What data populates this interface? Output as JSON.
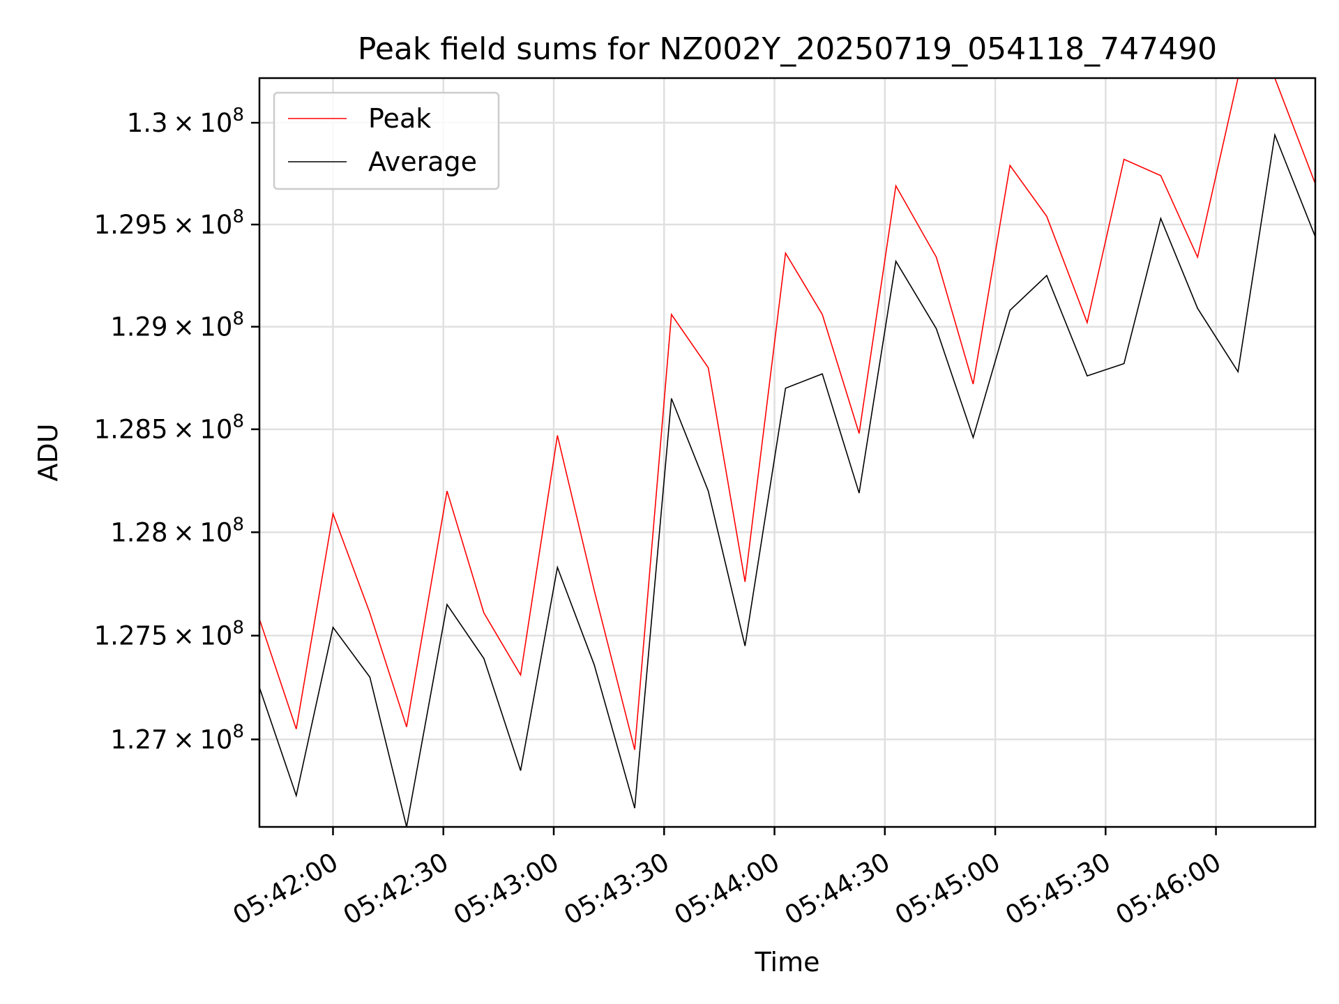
{
  "chart_data": {
    "type": "line",
    "title": "Peak field sums for NZ002Y_20250719_054118_747490",
    "xlabel": "Time",
    "ylabel": "ADU",
    "x_ticks": [
      "05:42:00",
      "05:42:30",
      "05:43:00",
      "05:43:30",
      "05:44:00",
      "05:44:30",
      "05:45:00",
      "05:45:30",
      "05:46:00"
    ],
    "y_ticks": [
      {
        "value": 127000000,
        "mantissa": "1.27",
        "base": "10",
        "exp": "8"
      },
      {
        "value": 127500000,
        "mantissa": "1.275",
        "base": "10",
        "exp": "8"
      },
      {
        "value": 128000000,
        "mantissa": "1.28",
        "base": "10",
        "exp": "8"
      },
      {
        "value": 128500000,
        "mantissa": "1.285",
        "base": "10",
        "exp": "8"
      },
      {
        "value": 129000000,
        "mantissa": "1.29",
        "base": "10",
        "exp": "8"
      },
      {
        "value": 129500000,
        "mantissa": "1.295",
        "base": "10",
        "exp": "8"
      },
      {
        "value": 130000000,
        "mantissa": "1.3",
        "base": "10",
        "exp": "8"
      }
    ],
    "xlim": [
      "05:41:40",
      "05:46:27"
    ],
    "ylim": [
      126580000,
      130220000
    ],
    "y_scale": "log",
    "grid": true,
    "legend_position": "top-left",
    "x": [
      "05:41:40",
      "05:41:50",
      "05:42:00",
      "05:42:10",
      "05:42:20",
      "05:42:31",
      "05:42:41",
      "05:42:51",
      "05:43:01",
      "05:43:11",
      "05:43:22",
      "05:43:32",
      "05:43:42",
      "05:43:52",
      "05:44:03",
      "05:44:13",
      "05:44:23",
      "05:44:33",
      "05:44:44",
      "05:44:54",
      "05:45:04",
      "05:45:14",
      "05:45:25",
      "05:45:35",
      "05:45:45",
      "05:45:55",
      "05:46:06",
      "05:46:16",
      "05:46:27"
    ],
    "series": [
      {
        "name": "Peak",
        "color": "#ff0000",
        "values": [
          127580000,
          127050000,
          128090000,
          127610000,
          127060000,
          128200000,
          127610000,
          127310000,
          128470000,
          127720000,
          126950000,
          129060000,
          128800000,
          127760000,
          129360000,
          129060000,
          128480000,
          129690000,
          129340000,
          128720000,
          129790000,
          129540000,
          129020000,
          129820000,
          129740000,
          129340000,
          130220000,
          130220000,
          129700000
        ]
      },
      {
        "name": "Average",
        "color": "#000000",
        "values": [
          127250000,
          126730000,
          127540000,
          127300000,
          126580000,
          127650000,
          127390000,
          126850000,
          127830000,
          127360000,
          126670000,
          128650000,
          128200000,
          127450000,
          128700000,
          128770000,
          128190000,
          129320000,
          128990000,
          128460000,
          129080000,
          129250000,
          128760000,
          128820000,
          129530000,
          129090000,
          128780000,
          129940000,
          129440000
        ]
      }
    ]
  }
}
